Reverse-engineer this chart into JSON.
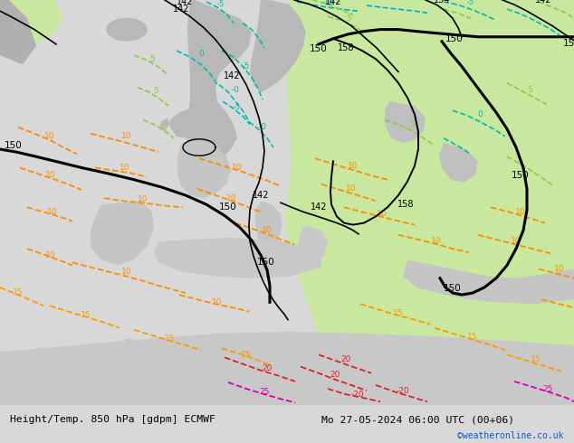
{
  "title_left": "Height/Temp. 850 hPa [gdpm] ECMWF",
  "title_right": "Mo 27-05-2024 06:00 UTC (00+06)",
  "copyright": "©weatheronline.co.uk",
  "bg_color": "#dcdcdc",
  "figsize": [
    6.34,
    4.9
  ],
  "dpi": 100,
  "font_size_title": 8.5,
  "light_green": "#c8e8a0",
  "med_green": "#b0d880",
  "gray_land": "#b8b8b8",
  "sea_color": "#d0d0d0"
}
